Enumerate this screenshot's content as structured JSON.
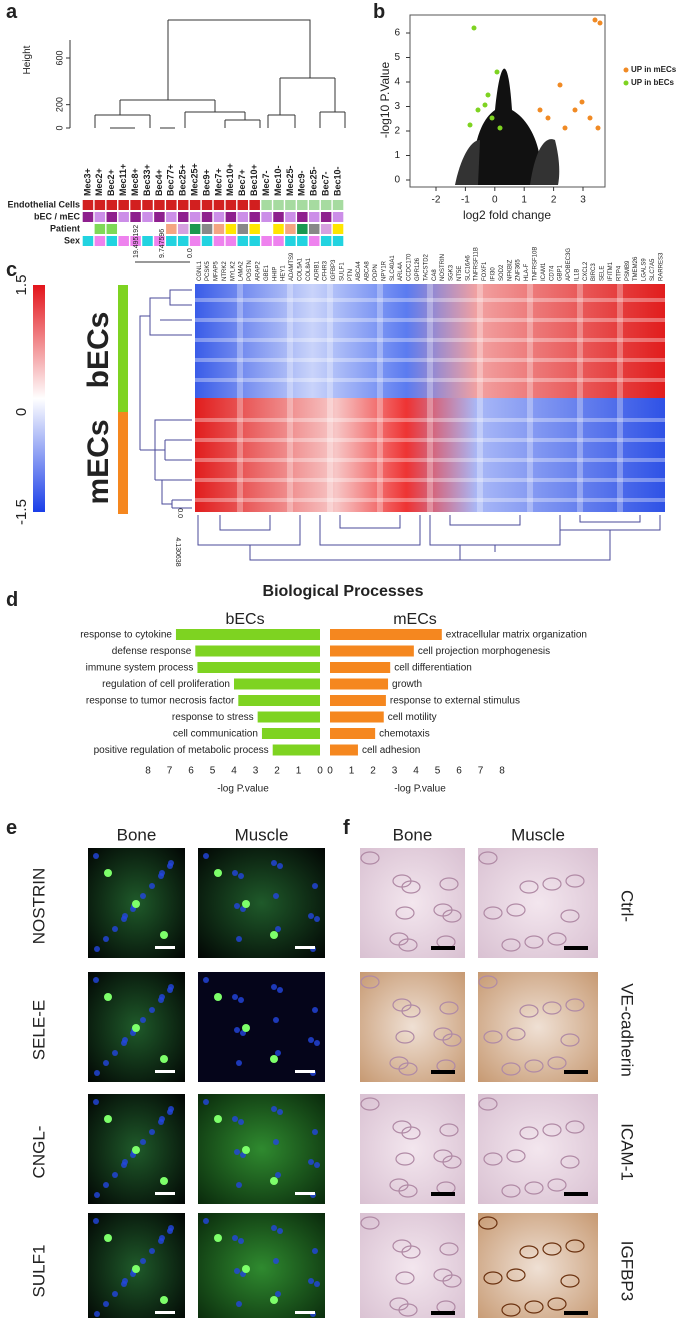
{
  "panels": {
    "a": {
      "label": "a",
      "y_axis_label": "Height",
      "yticks": [
        0,
        200,
        600
      ],
      "samples": [
        "Mec3+",
        "Mec2+",
        "Bec2+",
        "Mec11+",
        "Mec8+",
        "Bec33+",
        "Bec4+",
        "Bec77+",
        "Bec25+",
        "Mec25+",
        "Bec9+",
        "Mec7+",
        "Mec10+",
        "Bec7+",
        "Bec10+",
        "Mec7-",
        "Mec10-",
        "Mec25-",
        "Mec9-",
        "Bec25-",
        "Bec7-",
        "Bec10-"
      ],
      "tracks": [
        "Endothelial Cells",
        "bEC / mEC",
        "Patient",
        "Sex"
      ]
    },
    "b": {
      "label": "b",
      "x_axis_label": "log2 fold change",
      "y_axis_label": "-log10 P.Value",
      "xticks": [
        -2,
        -1,
        0,
        1,
        2,
        3
      ],
      "yticks": [
        0,
        1,
        2,
        3,
        4,
        5,
        6
      ],
      "legend": [
        {
          "name": "UP in mECs",
          "color": "#f08a24"
        },
        {
          "name": "UP in bECs",
          "color": "#7ed321"
        }
      ]
    },
    "c": {
      "label": "c",
      "scale_ticks": [
        1.5,
        0,
        -1.5
      ],
      "groups": [
        "bECs",
        "mECs"
      ],
      "top_ticks": [
        "19.495192",
        "9.747596",
        "0.0"
      ],
      "bottom_ticks": [
        "0.0",
        "4.130638"
      ],
      "genes": [
        "CGNL1",
        "PCSK5",
        "MFAP5",
        "NTRK2",
        "MYLK2",
        "LAMA2",
        "POSTN",
        "ARAP2",
        "GBE1",
        "HHIP",
        "HEY1",
        "ADAMTS9",
        "COL5A1",
        "COL8A1",
        "ADRB1",
        "CFHR3",
        "IGFBP3",
        "SULF1",
        "PTN",
        "ABCA4",
        "ABCA8",
        "PDPN",
        "NPY1R",
        "SLC40A1",
        "ARL4A",
        "CCDC170",
        "GPR126",
        "TACSTD2",
        "CA8",
        "NOSTRIN",
        "SGK3",
        "NT5E",
        "SLC16A6",
        "TNFRSF11B",
        "FOXF1",
        "IFI30",
        "SOD2",
        "NFKBIZ",
        "ZNF365",
        "HLA-F",
        "TNFRSF10B",
        "ICAM1",
        "CD74",
        "GBP1",
        "APOBEC3G",
        "IL1B",
        "CXCL2",
        "BIRC3",
        "SELE",
        "IFITM1",
        "RTP4",
        "PSMB9",
        "TMEM26",
        "LGALS9",
        "SLC7A5",
        "RARRES3"
      ]
    },
    "d": {
      "label": "d",
      "title": "Biological Processes",
      "x_axis_label": "-log P.value",
      "xticks": [
        0,
        1,
        2,
        3,
        4,
        5,
        6,
        7,
        8
      ],
      "series": [
        {
          "name": "bECs",
          "color": "#7ed321",
          "terms": [
            "response to cytokine",
            "defense response",
            "immune system process",
            "regulation of cell proliferation",
            "response to tumor necrosis factor",
            "response to stress",
            "cell communication",
            "positive regulation of metabolic process"
          ],
          "values": [
            6.7,
            5.8,
            5.7,
            4.0,
            3.8,
            2.9,
            2.7,
            2.2
          ]
        },
        {
          "name": "mECs",
          "color": "#f5871f",
          "terms": [
            "extracellular matrix organization",
            "cell projection morphogenesis",
            "cell differentiation",
            "growth",
            "response to external stimulus",
            "cell motility",
            "chemotaxis",
            "cell adhesion"
          ],
          "values": [
            5.2,
            3.9,
            2.8,
            2.7,
            2.6,
            2.5,
            2.1,
            1.3
          ]
        }
      ]
    },
    "e": {
      "label": "e",
      "columns": [
        "Bone",
        "Muscle"
      ],
      "rows": [
        "NOSTRIN",
        "SELE-E",
        "CNGL-",
        "SULF1"
      ]
    },
    "f": {
      "label": "f",
      "columns": [
        "Bone",
        "Muscle"
      ],
      "rows": [
        "Ctrl-",
        "VE-cadherin",
        "ICAM-1",
        "IGFBP3"
      ]
    }
  }
}
